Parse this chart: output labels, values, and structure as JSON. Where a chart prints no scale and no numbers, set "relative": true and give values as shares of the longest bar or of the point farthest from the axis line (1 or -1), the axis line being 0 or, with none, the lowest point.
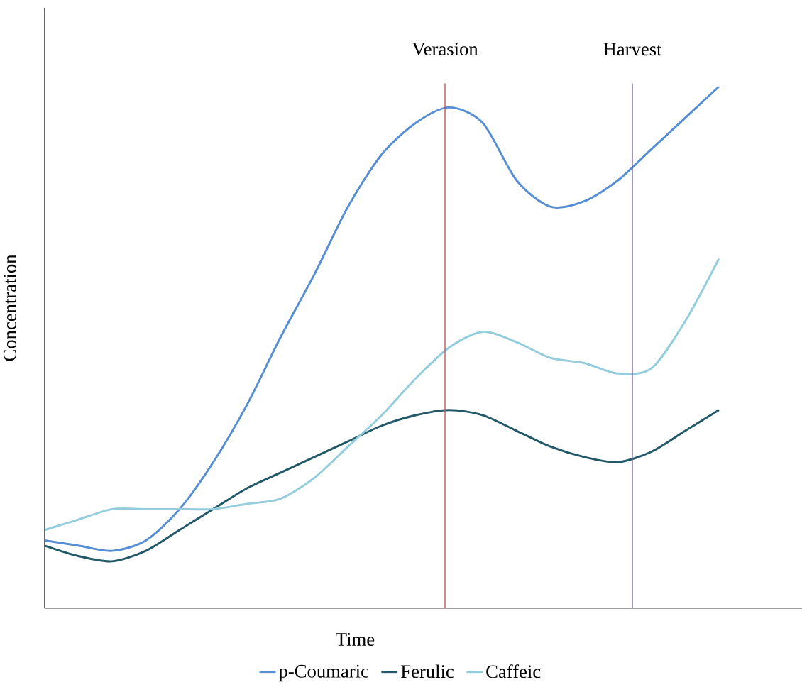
{
  "chart_data": {
    "type": "line",
    "relative": true,
    "xlabel": "Time",
    "ylabel": "Concentration",
    "legend": "bottom",
    "categories": [
      null,
      null,
      null,
      null,
      null,
      null,
      null,
      null,
      null,
      null,
      null,
      null,
      null,
      null,
      null,
      null,
      null,
      null,
      null,
      null,
      null
    ],
    "series": [
      {
        "name": "p-Coumaric",
        "color": "#558ed5",
        "values": [
          0.13,
          0.12,
          0.11,
          0.13,
          0.19,
          0.28,
          0.39,
          0.52,
          0.64,
          0.77,
          0.87,
          0.93,
          0.96,
          0.93,
          0.82,
          0.77,
          0.78,
          0.82,
          0.88,
          0.94,
          1
        ]
      },
      {
        "name": "Ferulic",
        "color": "#215968",
        "values": [
          0.12,
          0.1,
          0.09,
          0.11,
          0.15,
          0.19,
          0.23,
          0.26,
          0.29,
          0.32,
          0.35,
          0.37,
          0.38,
          0.37,
          0.34,
          0.31,
          0.29,
          0.28,
          0.3,
          0.34,
          0.38
        ]
      },
      {
        "name": "Caffeic",
        "color": "#93cddd",
        "values": [
          0.15,
          0.17,
          0.19,
          0.19,
          0.19,
          0.19,
          0.2,
          0.21,
          0.25,
          0.31,
          0.37,
          0.44,
          0.5,
          0.53,
          0.51,
          0.48,
          0.47,
          0.45,
          0.46,
          0.55,
          0.67
        ]
      }
    ],
    "annotations": [
      "Verasion",
      "Harvest"
    ]
  }
}
